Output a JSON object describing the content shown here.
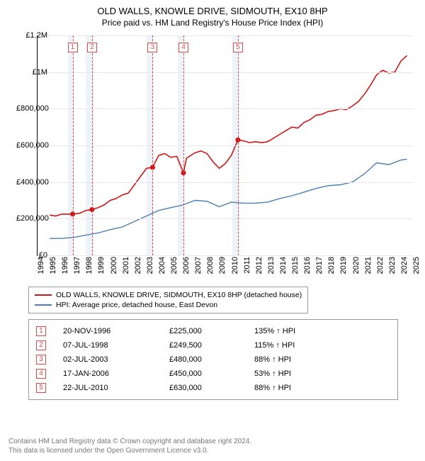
{
  "title": "OLD WALLS, KNOWLE DRIVE, SIDMOUTH, EX10 8HP",
  "subtitle": "Price paid vs. HM Land Registry's House Price Index (HPI)",
  "chart": {
    "type": "line",
    "background_color": "#ffffff",
    "grid_color": "#e8e8e8",
    "marker_band_color": "#eef3fa",
    "marker_line_color": "#d94a4a",
    "marker_border_color": "#d94a4a",
    "series_a_color": "#d11516",
    "series_b_color": "#4a7fb5",
    "axis_color": "#000000",
    "x_range": [
      1994,
      2025
    ],
    "y_range": [
      0,
      1200000
    ],
    "y_ticks": [
      {
        "v": 0,
        "label": "£0"
      },
      {
        "v": 200000,
        "label": "£200,000"
      },
      {
        "v": 400000,
        "label": "£400,000"
      },
      {
        "v": 600000,
        "label": "£600,000"
      },
      {
        "v": 800000,
        "label": "£800,000"
      },
      {
        "v": 1000000,
        "label": "£1M"
      },
      {
        "v": 1200000,
        "label": "£1.2M"
      }
    ],
    "x_ticks": [
      1994,
      1995,
      1996,
      1997,
      1998,
      1999,
      2000,
      2001,
      2002,
      2003,
      2004,
      2005,
      2006,
      2007,
      2008,
      2009,
      2010,
      2011,
      2012,
      2013,
      2014,
      2015,
      2016,
      2017,
      2018,
      2019,
      2020,
      2021,
      2022,
      2023,
      2024,
      2025
    ],
    "markers": [
      {
        "n": "1",
        "x": 1996.9,
        "y": 225000,
        "band_start": 1996.5,
        "band_end": 1997.0
      },
      {
        "n": "2",
        "x": 1998.5,
        "y": 249500,
        "band_start": 1998.0,
        "band_end": 1998.6
      },
      {
        "n": "3",
        "x": 2003.5,
        "y": 480000,
        "band_start": 2003.0,
        "band_end": 2003.6
      },
      {
        "n": "4",
        "x": 2006.05,
        "y": 450000,
        "band_start": 2005.6,
        "band_end": 2006.1
      },
      {
        "n": "5",
        "x": 2010.55,
        "y": 630000,
        "band_start": 2010.1,
        "band_end": 2010.6
      }
    ],
    "series_a": [
      [
        1995.0,
        220000
      ],
      [
        1995.5,
        215000
      ],
      [
        1996.0,
        225000
      ],
      [
        1996.9,
        225000
      ],
      [
        1997.5,
        230000
      ],
      [
        1998.0,
        245000
      ],
      [
        1998.5,
        249500
      ],
      [
        1999.0,
        260000
      ],
      [
        1999.5,
        275000
      ],
      [
        2000.0,
        300000
      ],
      [
        2000.5,
        310000
      ],
      [
        2001.0,
        330000
      ],
      [
        2001.5,
        340000
      ],
      [
        2002.0,
        385000
      ],
      [
        2002.5,
        430000
      ],
      [
        2003.0,
        475000
      ],
      [
        2003.5,
        480000
      ],
      [
        2004.0,
        545000
      ],
      [
        2004.5,
        555000
      ],
      [
        2005.0,
        535000
      ],
      [
        2005.5,
        540000
      ],
      [
        2006.05,
        450000
      ],
      [
        2006.3,
        530000
      ],
      [
        2007.0,
        560000
      ],
      [
        2007.5,
        570000
      ],
      [
        2008.0,
        555000
      ],
      [
        2008.5,
        510000
      ],
      [
        2009.0,
        475000
      ],
      [
        2009.5,
        500000
      ],
      [
        2010.0,
        545000
      ],
      [
        2010.55,
        630000
      ],
      [
        2011.0,
        625000
      ],
      [
        2011.5,
        615000
      ],
      [
        2012.0,
        620000
      ],
      [
        2012.5,
        615000
      ],
      [
        2013.0,
        620000
      ],
      [
        2013.5,
        640000
      ],
      [
        2014.0,
        660000
      ],
      [
        2014.5,
        680000
      ],
      [
        2015.0,
        700000
      ],
      [
        2015.5,
        695000
      ],
      [
        2016.0,
        725000
      ],
      [
        2016.5,
        740000
      ],
      [
        2017.0,
        765000
      ],
      [
        2017.5,
        770000
      ],
      [
        2018.0,
        785000
      ],
      [
        2018.5,
        790000
      ],
      [
        2019.0,
        800000
      ],
      [
        2019.5,
        795000
      ],
      [
        2020.0,
        815000
      ],
      [
        2020.5,
        840000
      ],
      [
        2021.0,
        880000
      ],
      [
        2021.5,
        930000
      ],
      [
        2022.0,
        985000
      ],
      [
        2022.5,
        1010000
      ],
      [
        2023.0,
        995000
      ],
      [
        2023.5,
        1000000
      ],
      [
        2024.0,
        1060000
      ],
      [
        2024.5,
        1090000
      ]
    ],
    "series_b": [
      [
        1995.0,
        92000
      ],
      [
        1996.0,
        92000
      ],
      [
        1997.0,
        98000
      ],
      [
        1998.0,
        110000
      ],
      [
        1999.0,
        122000
      ],
      [
        2000.0,
        140000
      ],
      [
        2001.0,
        155000
      ],
      [
        2002.0,
        185000
      ],
      [
        2003.0,
        215000
      ],
      [
        2004.0,
        245000
      ],
      [
        2005.0,
        260000
      ],
      [
        2006.0,
        275000
      ],
      [
        2007.0,
        300000
      ],
      [
        2008.0,
        295000
      ],
      [
        2009.0,
        265000
      ],
      [
        2010.0,
        290000
      ],
      [
        2011.0,
        285000
      ],
      [
        2012.0,
        285000
      ],
      [
        2013.0,
        290000
      ],
      [
        2014.0,
        310000
      ],
      [
        2015.0,
        325000
      ],
      [
        2016.0,
        345000
      ],
      [
        2017.0,
        365000
      ],
      [
        2018.0,
        380000
      ],
      [
        2019.0,
        385000
      ],
      [
        2020.0,
        400000
      ],
      [
        2021.0,
        445000
      ],
      [
        2022.0,
        505000
      ],
      [
        2023.0,
        495000
      ],
      [
        2024.0,
        520000
      ],
      [
        2024.5,
        525000
      ]
    ]
  },
  "legend": {
    "a": "OLD WALLS, KNOWLE DRIVE, SIDMOUTH, EX10 8HP (detached house)",
    "b": "HPI: Average price, detached house, East Devon"
  },
  "transactions": [
    {
      "n": "1",
      "date": "20-NOV-1996",
      "price": "£225,000",
      "pct": "135% ↑ HPI"
    },
    {
      "n": "2",
      "date": "07-JUL-1998",
      "price": "£249,500",
      "pct": "115% ↑ HPI"
    },
    {
      "n": "3",
      "date": "02-JUL-2003",
      "price": "£480,000",
      "pct": "88% ↑ HPI"
    },
    {
      "n": "4",
      "date": "17-JAN-2006",
      "price": "£450,000",
      "pct": "53% ↑ HPI"
    },
    {
      "n": "5",
      "date": "22-JUL-2010",
      "price": "£630,000",
      "pct": "88% ↑ HPI"
    }
  ],
  "footer": {
    "line1": "Contains HM Land Registry data © Crown copyright and database right 2024.",
    "line2": "This data is licensed under the Open Government Licence v3.0."
  }
}
